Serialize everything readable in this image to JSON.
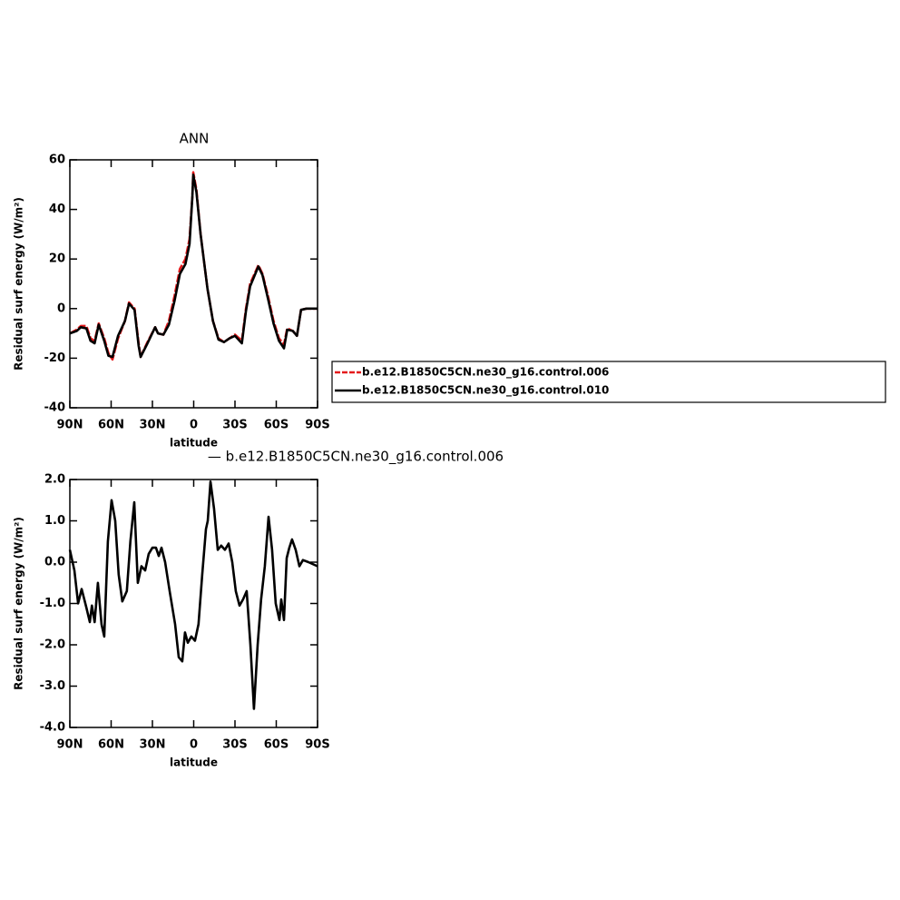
{
  "chart_data": [
    {
      "type": "line",
      "title": "ANN",
      "xlabel": "latitude",
      "ylabel": "Residual surf energy (W/m²)",
      "xlim": [
        90,
        -90
      ],
      "ylim": [
        -40,
        60
      ],
      "xticks": [
        {
          "value": 90,
          "label": "90N"
        },
        {
          "value": 60,
          "label": "60N"
        },
        {
          "value": 30,
          "label": "30N"
        },
        0,
        {
          "value": -30,
          "label": "30S"
        },
        {
          "value": -60,
          "label": "60S"
        },
        {
          "value": -90,
          "label": "90S"
        }
      ],
      "yticks": [
        -40,
        -20,
        0,
        20,
        40,
        60
      ],
      "legend": true,
      "x": [
        90,
        85,
        82,
        78,
        75,
        72,
        69,
        65,
        62,
        59,
        55,
        50,
        47,
        43,
        40,
        38.6,
        34,
        28,
        26,
        22,
        18,
        14,
        10,
        6,
        3,
        1,
        0.3,
        -2,
        -5,
        -10,
        -14,
        -18,
        -22,
        -26,
        -30,
        -35,
        -38,
        -41,
        -47,
        -50,
        -54,
        -58,
        -62,
        -65.6,
        -68,
        -72,
        -75,
        -78,
        -82,
        -90
      ],
      "series": [
        {
          "name": "b.e12.B1850C5CN.ne30_g16.control.006",
          "color": "#e41a1c",
          "dash": true,
          "values": [
            -10,
            -8.5,
            -7,
            -7,
            -12,
            -13,
            -6,
            -12,
            -18,
            -20.5,
            -12,
            -5,
            2.5,
            0,
            -14,
            -19.5,
            -14,
            -7.5,
            -10,
            -10.5,
            -5,
            5,
            16,
            20,
            28,
            45,
            55,
            48,
            30,
            8,
            -5,
            -12,
            -13.5,
            -12,
            -10.5,
            -13,
            0,
            10,
            17.5,
            14,
            5,
            -5,
            -12,
            -14.5,
            -8,
            -9,
            -11,
            -0.5,
            0,
            0
          ]
        },
        {
          "name": "b.e12.B1850C5CN.ne30_g16.control.010",
          "color": "#000000",
          "dash": false,
          "values": [
            -10,
            -9,
            -7.5,
            -8,
            -13,
            -14,
            -6.5,
            -13,
            -19,
            -19.5,
            -11,
            -5,
            2,
            -0.5,
            -15,
            -19.5,
            -14.5,
            -7.5,
            -10,
            -10.5,
            -6.5,
            3,
            14,
            18,
            26,
            45,
            54,
            47,
            30,
            8,
            -5,
            -12.5,
            -13.5,
            -12,
            -11,
            -14,
            -1,
            9,
            17,
            13.5,
            4,
            -6,
            -13,
            -16,
            -8.5,
            -9,
            -11,
            -0.5,
            0,
            0
          ]
        }
      ]
    },
    {
      "type": "line",
      "title": "— b.e12.B1850C5CN.ne30_g16.control.006",
      "xlabel": "latitude",
      "ylabel": "Residual surf energy (W/m²)",
      "xlim": [
        90,
        -90
      ],
      "ylim": [
        -4,
        2
      ],
      "xticks": [
        {
          "value": 90,
          "label": "90N"
        },
        {
          "value": 60,
          "label": "60N"
        },
        {
          "value": 30,
          "label": "30N"
        },
        0,
        {
          "value": -30,
          "label": "30S"
        },
        {
          "value": -60,
          "label": "60S"
        },
        {
          "value": -90,
          "label": "90S"
        }
      ],
      "yticks": [
        {
          "value": -4,
          "label": "-4.0"
        },
        {
          "value": -3,
          "label": "-3.0"
        },
        {
          "value": -2,
          "label": "-2.0"
        },
        {
          "value": -1,
          "label": "-1.0"
        },
        {
          "value": 0,
          "label": "0.0"
        },
        {
          "value": 1,
          "label": "1.0"
        },
        {
          "value": 2,
          "label": "2.0"
        }
      ],
      "legend": false,
      "x": [
        90,
        86.7,
        84,
        81.4,
        78,
        75.5,
        74,
        72,
        69.6,
        67,
        65,
        62.4,
        59.7,
        57,
        54.5,
        51.9,
        48.6,
        46,
        43.2,
        40.6,
        38,
        35.3,
        32.7,
        30,
        27.4,
        25.4,
        23.4,
        20.8,
        17.5,
        13.5,
        10.9,
        8.3,
        6.3,
        4.3,
        1.7,
        -0.9,
        -3.5,
        -6.2,
        -8.9,
        -10.2,
        -12.2,
        -14.8,
        -17.5,
        -20,
        -22.7,
        -25.4,
        -28,
        -30.6,
        -33.3,
        -35.9,
        -38.5,
        -41.2,
        -43.8,
        -46.5,
        -49,
        -51.7,
        -54.4,
        -57,
        -59.6,
        -62.3,
        -63.6,
        -65.6,
        -67.6,
        -69.5,
        -71.5,
        -74.1,
        -76.8,
        -79.4,
        -83.4,
        -90
      ],
      "series": [
        {
          "color": "#000000",
          "dash": false,
          "values": [
            0.3,
            -0.2,
            -1.0,
            -0.65,
            -1.1,
            -1.45,
            -1.05,
            -1.45,
            -0.5,
            -1.5,
            -1.8,
            0.5,
            1.5,
            1.0,
            -0.3,
            -0.95,
            -0.7,
            0.5,
            1.45,
            -0.5,
            -0.1,
            -0.2,
            0.2,
            0.35,
            0.35,
            0.15,
            0.35,
            0.0,
            -0.7,
            -1.5,
            -2.3,
            -2.4,
            -1.7,
            -1.95,
            -1.8,
            -1.9,
            -1.5,
            -0.3,
            0.8,
            1.0,
            1.95,
            1.3,
            0.3,
            0.4,
            0.3,
            0.45,
            0.0,
            -0.7,
            -1.05,
            -0.9,
            -0.7,
            -2.0,
            -3.55,
            -2.0,
            -0.9,
            -0.1,
            1.1,
            0.3,
            -1.0,
            -1.4,
            -0.9,
            -1.4,
            0.1,
            0.35,
            0.55,
            0.3,
            -0.1,
            0.05,
            0.0,
            -0.1
          ]
        }
      ]
    }
  ]
}
